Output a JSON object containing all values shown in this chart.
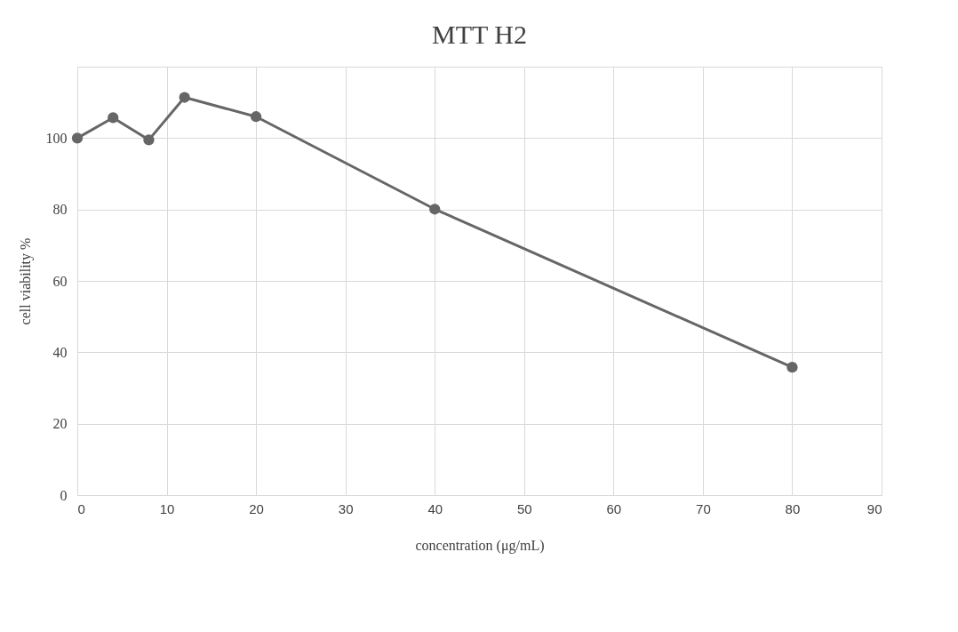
{
  "chart_data": {
    "type": "line",
    "title": "MTT H2",
    "xlabel": "concentration (μg/mL)",
    "ylabel": "cell viability %",
    "x": [
      0,
      4,
      8,
      12,
      20,
      40,
      80
    ],
    "series": [
      {
        "color": "#666666",
        "values": [
          100,
          105.7,
          99.5,
          111.4,
          106.0,
          80.1,
          35.8
        ]
      }
    ],
    "xlim": [
      0,
      90
    ],
    "xticks": [
      0,
      10,
      20,
      30,
      40,
      50,
      60,
      70,
      80,
      90
    ],
    "ylim": [
      0,
      120
    ],
    "yticks": [
      0,
      20,
      40,
      60,
      80,
      100,
      {
        "value": 120,
        "label": null
      }
    ],
    "grid": true,
    "marker": "circle",
    "line_style": "solid",
    "legend": false
  }
}
